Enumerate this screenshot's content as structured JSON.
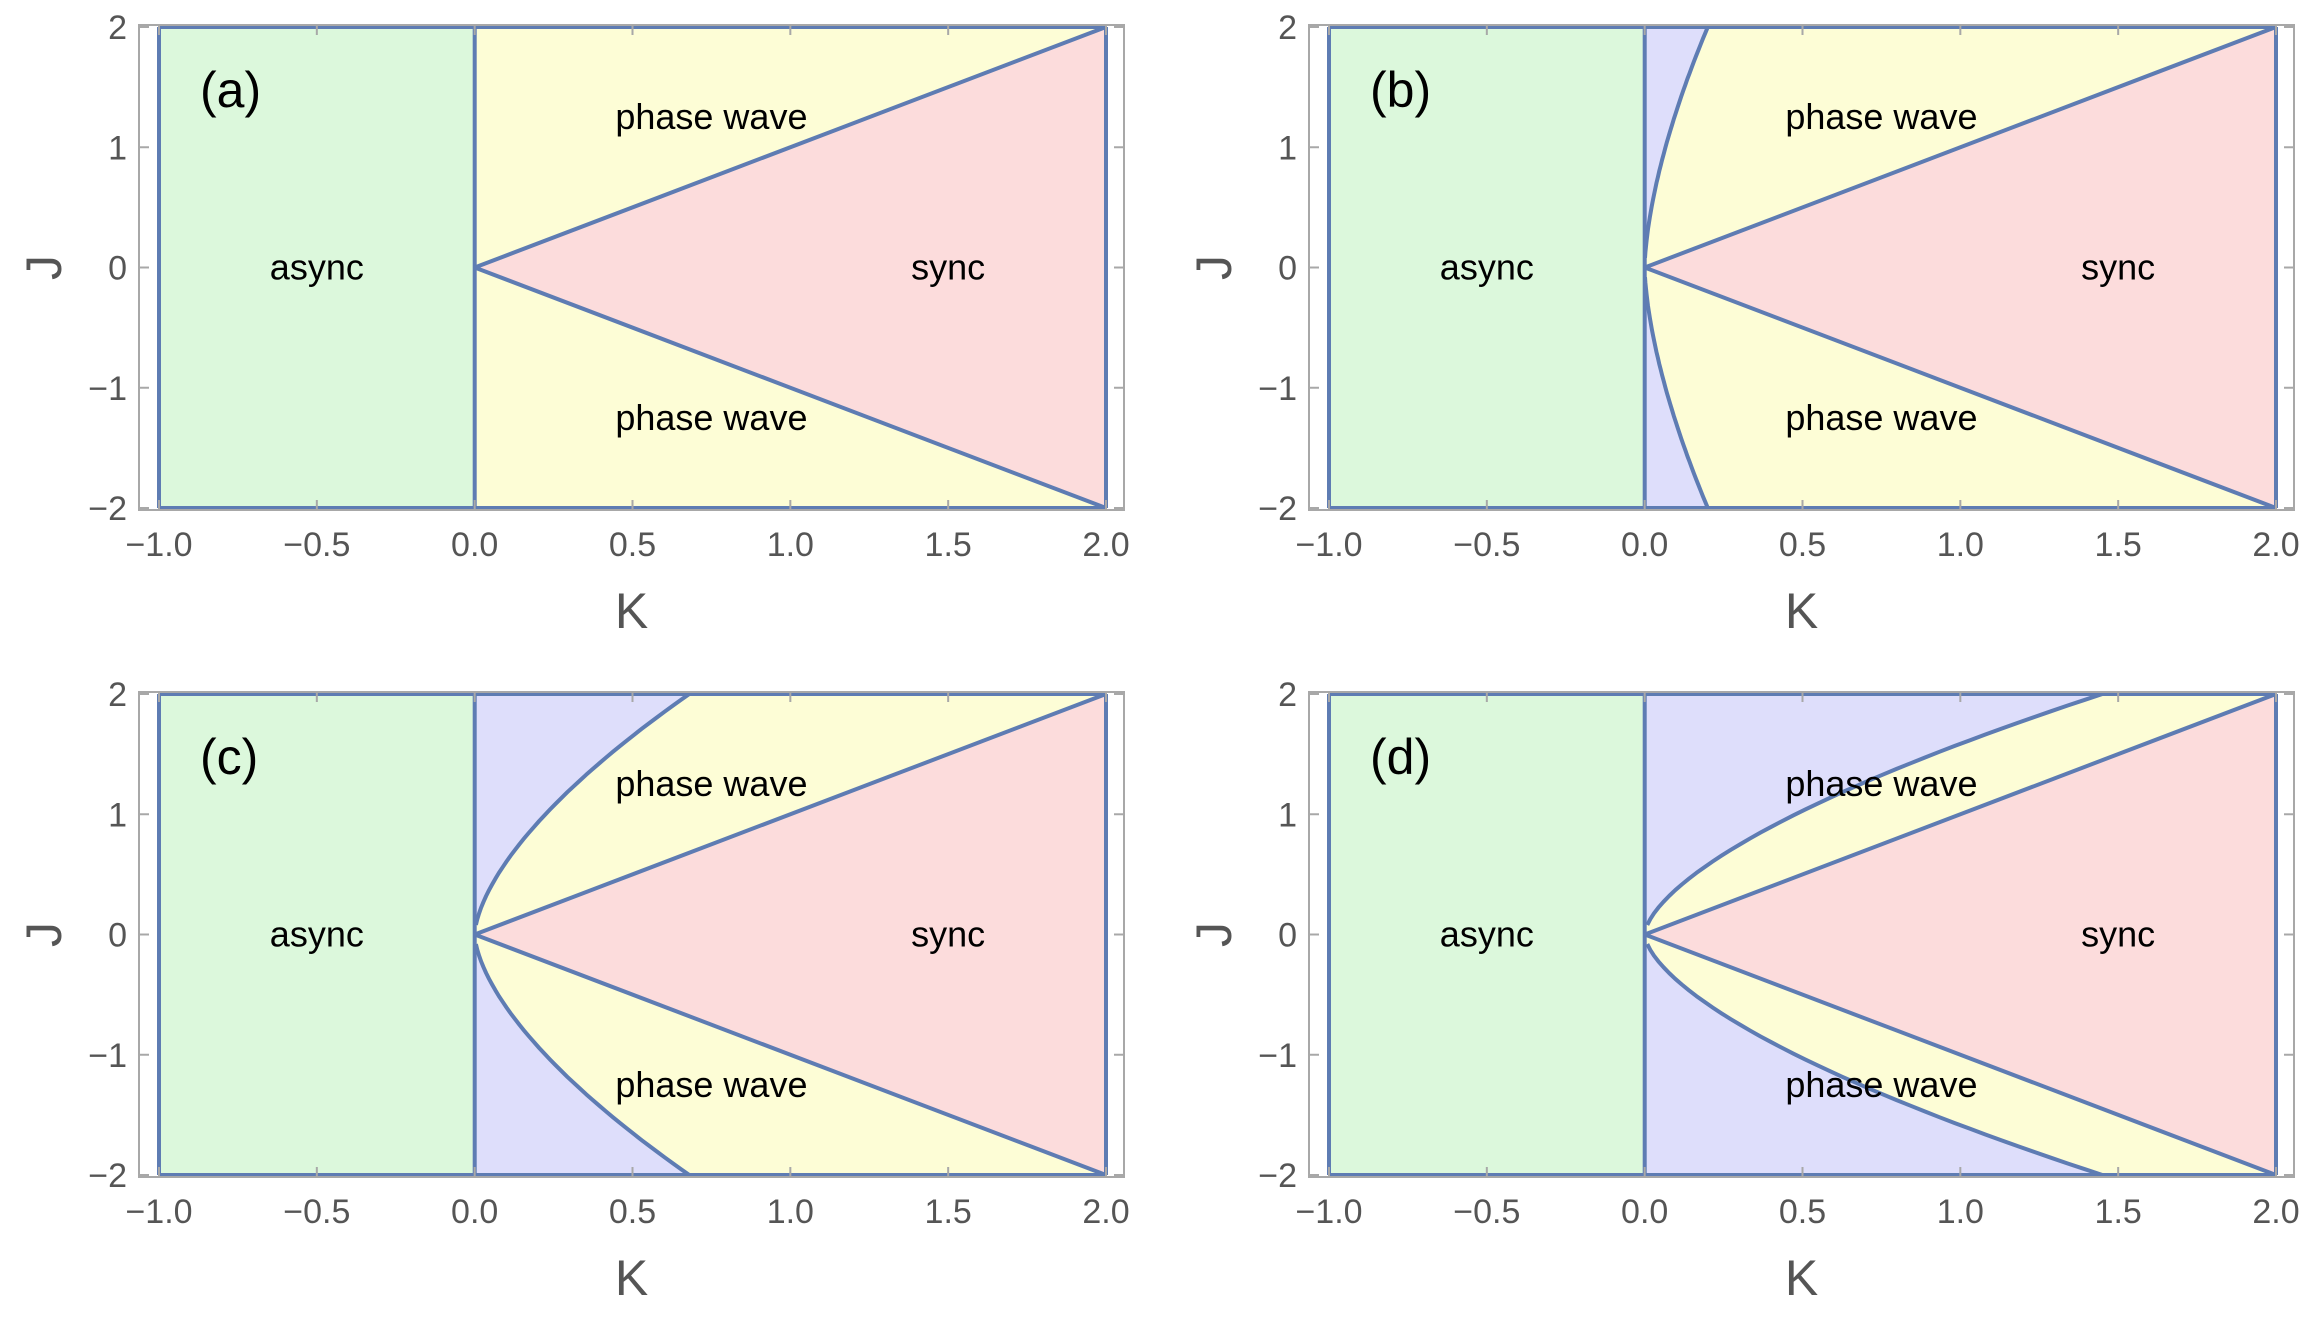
{
  "figure": {
    "colors": {
      "async": "#dcf8dc",
      "phase_wave": "#fdfdd6",
      "sync": "#fcdcdc",
      "mixed": "#dedefb",
      "boundary": "#5e7cb3",
      "frame": "#a8a8a8",
      "tick_text": "#555555"
    }
  },
  "chart_data": [
    {
      "type": "area",
      "panel_label": "(a)",
      "xlabel": "K",
      "ylabel": "J",
      "xlim": [
        -1.0,
        2.0
      ],
      "ylim": [
        -2,
        2
      ],
      "xticks": [
        "−1.0",
        "−0.5",
        "0.0",
        "0.5",
        "1.0",
        "1.5",
        "2.0"
      ],
      "yticks": [
        "2",
        "1",
        "0",
        "−1",
        "−2"
      ],
      "region_labels": {
        "async": "async",
        "phase_wave_top": "phase wave",
        "phase_wave_bottom": "phase wave",
        "sync": "sync"
      },
      "async_boundary_K": 0.0,
      "sync_boundary_slope": 1.0,
      "mixed_region_K_at_J2": null
    },
    {
      "type": "area",
      "panel_label": "(b)",
      "xlabel": "K",
      "ylabel": "J",
      "xlim": [
        -1.0,
        2.0
      ],
      "ylim": [
        -2,
        2
      ],
      "xticks": [
        "−1.0",
        "−0.5",
        "0.0",
        "0.5",
        "1.0",
        "1.5",
        "2.0"
      ],
      "yticks": [
        "2",
        "1",
        "0",
        "−1",
        "−2"
      ],
      "region_labels": {
        "async": "async",
        "phase_wave_top": "phase wave",
        "phase_wave_bottom": "phase wave",
        "sync": "sync"
      },
      "async_boundary_K": 0.0,
      "sync_boundary_slope": 1.0,
      "mixed_region_K_at_J2": 0.2
    },
    {
      "type": "area",
      "panel_label": "(c)",
      "xlabel": "K",
      "ylabel": "J",
      "xlim": [
        -1.0,
        2.0
      ],
      "ylim": [
        -2,
        2
      ],
      "xticks": [
        "−1.0",
        "−0.5",
        "0.0",
        "0.5",
        "1.0",
        "1.5",
        "2.0"
      ],
      "yticks": [
        "2",
        "1",
        "0",
        "−1",
        "−2"
      ],
      "region_labels": {
        "async": "async",
        "phase_wave_top": "phase wave",
        "phase_wave_bottom": "phase wave",
        "sync": "sync"
      },
      "async_boundary_K": 0.0,
      "sync_boundary_slope": 1.0,
      "mixed_region_K_at_J2": 0.68
    },
    {
      "type": "area",
      "panel_label": "(d)",
      "xlabel": "K",
      "ylabel": "J",
      "xlim": [
        -1.0,
        2.0
      ],
      "ylim": [
        -2,
        2
      ],
      "xticks": [
        "−1.0",
        "−0.5",
        "0.0",
        "0.5",
        "1.0",
        "1.5",
        "2.0"
      ],
      "yticks": [
        "2",
        "1",
        "0",
        "−1",
        "−2"
      ],
      "region_labels": {
        "async": "async",
        "phase_wave_top": "phase wave",
        "phase_wave_bottom": "phase wave",
        "sync": "sync"
      },
      "async_boundary_K": 0.0,
      "sync_boundary_slope": 1.0,
      "mixed_region_K_at_J2": 1.45
    }
  ]
}
